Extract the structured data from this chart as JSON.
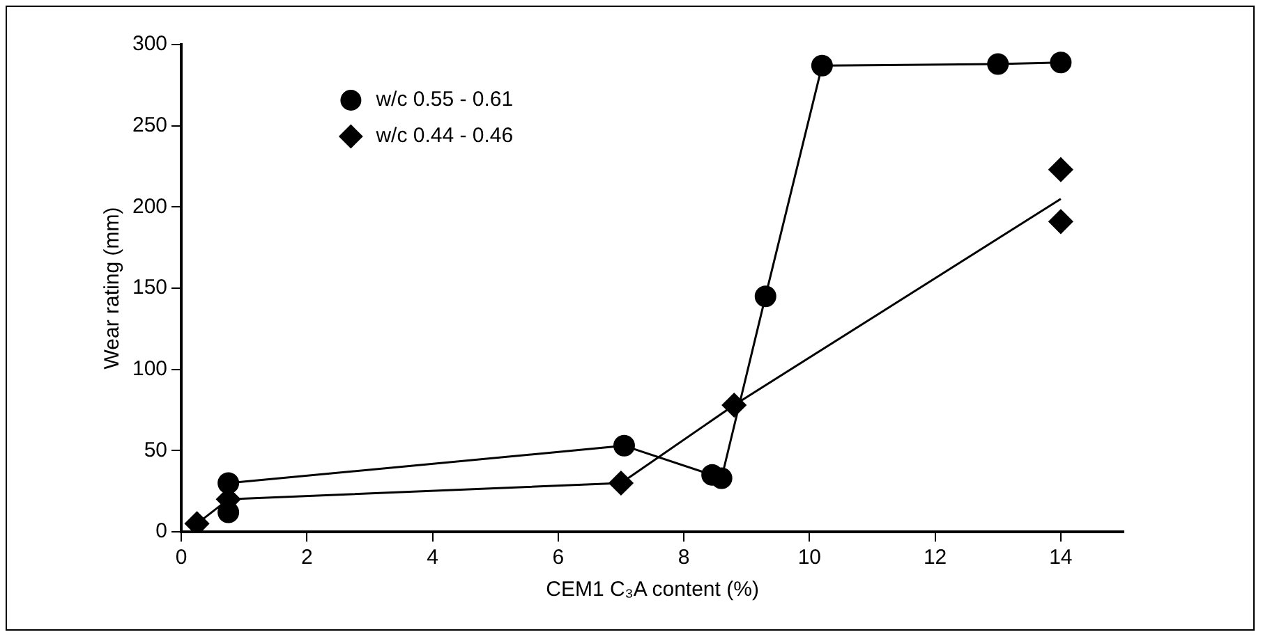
{
  "chart_data": {
    "type": "line",
    "xlabel": "CEM1 C₃A content (%)",
    "ylabel": "Wear rating (mm)",
    "xlim": [
      0,
      15
    ],
    "xticks": [
      0,
      2,
      4,
      6,
      8,
      10,
      12,
      14
    ],
    "ylim": [
      0,
      300
    ],
    "yticks": [
      0,
      50,
      100,
      150,
      200,
      250,
      300
    ],
    "grid": false,
    "legend": "top left",
    "series": [
      {
        "name": "w/c 0.55 - 0.61",
        "type": "line",
        "marker": "circle",
        "color": "#000000",
        "x": [
          0.75,
          0.75,
          7.05,
          8.45,
          8.6,
          9.3,
          10.2,
          13,
          14
        ],
        "values": [
          12,
          30,
          53,
          35,
          33,
          145,
          287,
          288,
          289
        ]
      },
      {
        "name": "w/c 0.44 - 0.46",
        "type": "scatter",
        "marker": "diamond",
        "color": "#000000",
        "x": [
          0.25,
          0.75,
          7,
          8.8,
          14,
          14
        ],
        "values": [
          5,
          20,
          30,
          78,
          223,
          191
        ]
      },
      {
        "type": "line",
        "marker": "none",
        "color": "#000000",
        "x": [
          0.25,
          0.75,
          7,
          8.8,
          14
        ],
        "values": [
          5,
          20,
          30,
          78,
          205
        ]
      }
    ]
  }
}
